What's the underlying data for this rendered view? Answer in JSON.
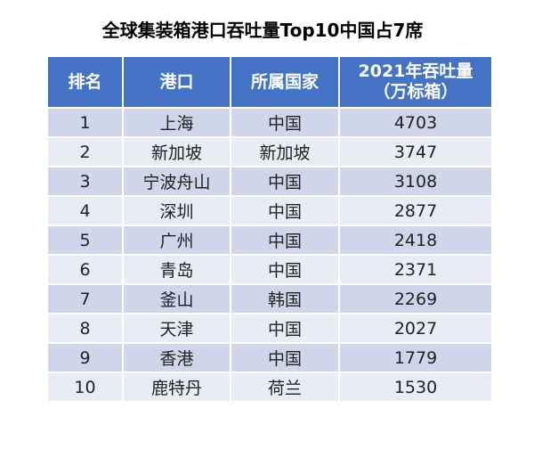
{
  "title": "全球集装箱港口吞吐量Top10中国占7席",
  "table": {
    "header": [
      "排名",
      "港口",
      "所属国家",
      "2021年吞吐量"
    ],
    "header_unit": "（万标箱）",
    "rows": [
      [
        1,
        "上海",
        "中国",
        4703
      ],
      [
        2,
        "新加坡",
        "新加坡",
        3747
      ],
      [
        3,
        "宁波舟山",
        "中国",
        3108
      ],
      [
        4,
        "深圳",
        "中国",
        2877
      ],
      [
        5,
        "广州",
        "中国",
        2418
      ],
      [
        6,
        "青岛",
        "中国",
        2371
      ],
      [
        7,
        "釜山",
        "韩国",
        2269
      ],
      [
        8,
        "天津",
        "中国",
        2027
      ],
      [
        9,
        "香港",
        "中国",
        1779
      ],
      [
        10,
        "鹿特丹",
        "荷兰",
        1530
      ]
    ]
  }
}
